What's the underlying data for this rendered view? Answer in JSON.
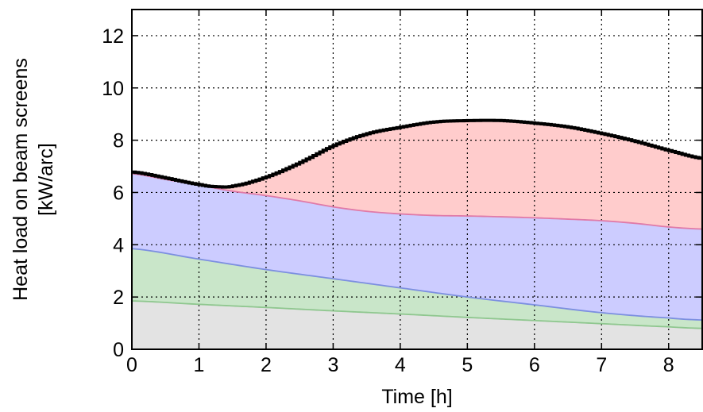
{
  "chart_data": {
    "type": "area",
    "stacked": true,
    "xlabel": "Time [h]",
    "ylabel_lines": [
      "Heat load on beam screens",
      "[kW/arc]"
    ],
    "xlim": [
      0,
      8.5
    ],
    "ylim": [
      0,
      13
    ],
    "xticks": [
      0,
      1,
      2,
      3,
      4,
      5,
      6,
      7,
      8
    ],
    "yticks": [
      0,
      2,
      4,
      6,
      8,
      10,
      12
    ],
    "grid": true,
    "series": [
      {
        "color": "#e3e3e3",
        "line_color": "#8fc78f",
        "x": [
          0,
          1,
          2,
          3,
          4,
          5,
          6,
          7,
          8,
          8.5
        ],
        "upper": [
          1.85,
          1.72,
          1.6,
          1.47,
          1.35,
          1.22,
          1.1,
          0.98,
          0.86,
          0.8
        ]
      },
      {
        "color": "#c9e6c9",
        "line_color": "#7c8fe0",
        "x": [
          0,
          1,
          2,
          3,
          4,
          5,
          6,
          7,
          8,
          8.5
        ],
        "upper": [
          3.85,
          3.45,
          3.05,
          2.7,
          2.35,
          2.0,
          1.7,
          1.4,
          1.2,
          1.12
        ]
      },
      {
        "color": "#ccccff",
        "line_color": "#e07aa8",
        "x": [
          0,
          0.5,
          1,
          1.5,
          2,
          2.5,
          3,
          3.5,
          4,
          4.5,
          5,
          5.5,
          6,
          6.5,
          7,
          7.5,
          8,
          8.5
        ],
        "upper": [
          6.72,
          6.5,
          6.28,
          6.05,
          5.88,
          5.68,
          5.45,
          5.28,
          5.18,
          5.12,
          5.1,
          5.07,
          5.03,
          4.98,
          4.92,
          4.82,
          4.68,
          4.6
        ]
      },
      {
        "color": "#ffcccc",
        "line_color": "#000000",
        "x": [
          0,
          0.5,
          1,
          1.25,
          1.5,
          2,
          2.5,
          3,
          3.5,
          4,
          4.5,
          5,
          5.5,
          6,
          6.5,
          7,
          7.5,
          8,
          8.5
        ],
        "upper": [
          6.78,
          6.55,
          6.3,
          6.22,
          6.25,
          6.6,
          7.15,
          7.8,
          8.25,
          8.5,
          8.7,
          8.75,
          8.75,
          8.65,
          8.5,
          8.25,
          7.95,
          7.6,
          7.3
        ]
      }
    ]
  }
}
